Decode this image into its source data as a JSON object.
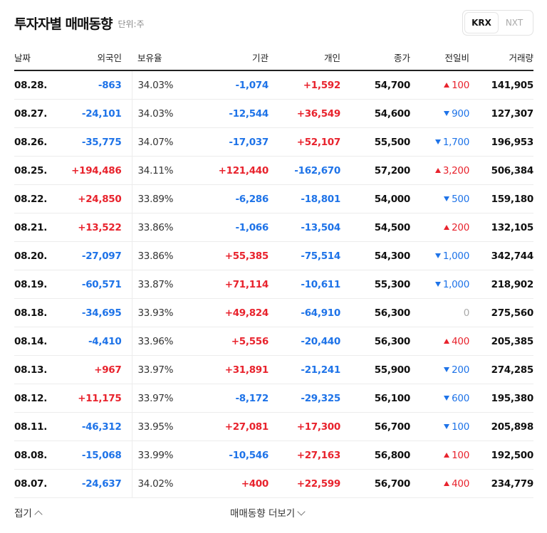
{
  "header": {
    "title": "투자자별 매매동향",
    "unit": "단위:주"
  },
  "market_toggle": {
    "krx": "KRX",
    "nxt": "NXT",
    "active": "KRX"
  },
  "columns": {
    "date": "날짜",
    "foreign": "외국인",
    "ownership": "보유율",
    "institution": "기관",
    "individual": "개인",
    "close": "종가",
    "change": "전일비",
    "volume": "거래량"
  },
  "rows": [
    {
      "date": "08.28.",
      "foreign": "-863",
      "ownership": "34.03%",
      "institution": "-1,074",
      "individual": "+1,592",
      "close": "54,700",
      "change": "100",
      "direction": "up",
      "volume": "141,905"
    },
    {
      "date": "08.27.",
      "foreign": "-24,101",
      "ownership": "34.03%",
      "institution": "-12,544",
      "individual": "+36,549",
      "close": "54,600",
      "change": "900",
      "direction": "down",
      "volume": "127,307"
    },
    {
      "date": "08.26.",
      "foreign": "-35,775",
      "ownership": "34.07%",
      "institution": "-17,037",
      "individual": "+52,107",
      "close": "55,500",
      "change": "1,700",
      "direction": "down",
      "volume": "196,953"
    },
    {
      "date": "08.25.",
      "foreign": "+194,486",
      "ownership": "34.11%",
      "institution": "+121,440",
      "individual": "-162,670",
      "close": "57,200",
      "change": "3,200",
      "direction": "up",
      "volume": "506,384"
    },
    {
      "date": "08.22.",
      "foreign": "+24,850",
      "ownership": "33.89%",
      "institution": "-6,286",
      "individual": "-18,801",
      "close": "54,000",
      "change": "500",
      "direction": "down",
      "volume": "159,180"
    },
    {
      "date": "08.21.",
      "foreign": "+13,522",
      "ownership": "33.86%",
      "institution": "-1,066",
      "individual": "-13,504",
      "close": "54,500",
      "change": "200",
      "direction": "up",
      "volume": "132,105"
    },
    {
      "date": "08.20.",
      "foreign": "-27,097",
      "ownership": "33.86%",
      "institution": "+55,385",
      "individual": "-75,514",
      "close": "54,300",
      "change": "1,000",
      "direction": "down",
      "volume": "342,744"
    },
    {
      "date": "08.19.",
      "foreign": "-60,571",
      "ownership": "33.87%",
      "institution": "+71,114",
      "individual": "-10,611",
      "close": "55,300",
      "change": "1,000",
      "direction": "down",
      "volume": "218,902"
    },
    {
      "date": "08.18.",
      "foreign": "-34,695",
      "ownership": "33.93%",
      "institution": "+49,824",
      "individual": "-64,910",
      "close": "56,300",
      "change": "0",
      "direction": "flat",
      "volume": "275,560"
    },
    {
      "date": "08.14.",
      "foreign": "-4,410",
      "ownership": "33.96%",
      "institution": "+5,556",
      "individual": "-20,440",
      "close": "56,300",
      "change": "400",
      "direction": "up",
      "volume": "205,385"
    },
    {
      "date": "08.13.",
      "foreign": "+967",
      "ownership": "33.97%",
      "institution": "+31,891",
      "individual": "-21,241",
      "close": "55,900",
      "change": "200",
      "direction": "down",
      "volume": "274,285"
    },
    {
      "date": "08.12.",
      "foreign": "+11,175",
      "ownership": "33.97%",
      "institution": "-8,172",
      "individual": "-29,325",
      "close": "56,100",
      "change": "600",
      "direction": "down",
      "volume": "195,380"
    },
    {
      "date": "08.11.",
      "foreign": "-46,312",
      "ownership": "33.95%",
      "institution": "+27,081",
      "individual": "+17,300",
      "close": "56,700",
      "change": "100",
      "direction": "down",
      "volume": "205,898"
    },
    {
      "date": "08.08.",
      "foreign": "-15,068",
      "ownership": "33.99%",
      "institution": "-10,546",
      "individual": "+27,163",
      "close": "56,800",
      "change": "100",
      "direction": "up",
      "volume": "192,500"
    },
    {
      "date": "08.07.",
      "foreign": "-24,637",
      "ownership": "34.02%",
      "institution": "+400",
      "individual": "+22,599",
      "close": "56,700",
      "change": "400",
      "direction": "up",
      "volume": "234,779"
    }
  ],
  "footer": {
    "fold_label": "접기",
    "more_label": "매매동향 더보기"
  },
  "colors": {
    "up": "#e8232d",
    "down": "#1e73e8",
    "flat": "#aaaaaa"
  }
}
